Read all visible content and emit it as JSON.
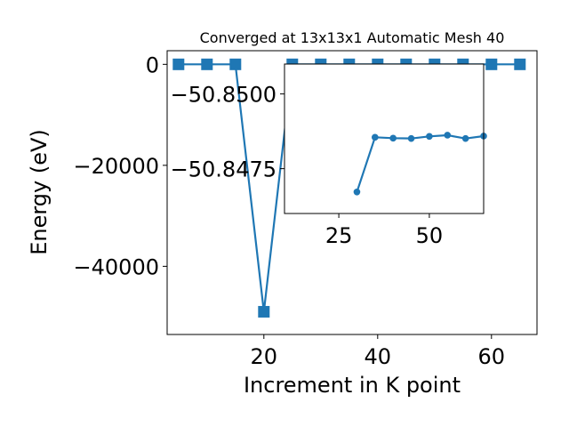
{
  "chart_data": [
    {
      "type": "line",
      "title": "Converged at 13x13x1 Automatic Mesh 40",
      "xlabel": "Increment in K point",
      "ylabel": "Energy (eV)",
      "xlim": [
        3,
        68
      ],
      "ylim": [
        -53500,
        2700
      ],
      "xticks": [
        20,
        40,
        60
      ],
      "yticks": [
        0,
        -20000,
        -40000
      ],
      "xtick_labels": [
        "20",
        "40",
        "60"
      ],
      "ytick_labels": [
        "0",
        "−20000",
        "−40000"
      ],
      "grid": false,
      "marker": "square",
      "series": [
        {
          "x": [
            5,
            10,
            15,
            20,
            25,
            30,
            35,
            40,
            45,
            50,
            55,
            60,
            65
          ],
          "y": [
            0,
            0,
            0,
            -49000,
            0,
            0,
            0,
            0,
            0,
            0,
            0,
            0,
            0
          ]
        }
      ]
    },
    {
      "type": "line",
      "inset": true,
      "xlim": [
        10,
        65
      ],
      "ylim": [
        -50.846,
        -50.851
      ],
      "xticks": [
        25,
        50
      ],
      "yticks": [
        -50.85,
        -50.8475
      ],
      "xtick_labels": [
        "25",
        "50"
      ],
      "ytick_labels": [
        "−50.8500",
        "−50.8475"
      ],
      "grid": false,
      "marker": "circle",
      "series": [
        {
          "x": [
            30,
            35,
            40,
            45,
            50,
            55,
            60,
            65
          ],
          "y": [
            -50.84672,
            -50.84855,
            -50.84852,
            -50.84851,
            -50.84858,
            -50.84862,
            -50.84851,
            -50.84859
          ]
        }
      ]
    }
  ],
  "colors": {
    "series": "#1f77b4",
    "axes": "#000000",
    "background": "#ffffff"
  }
}
